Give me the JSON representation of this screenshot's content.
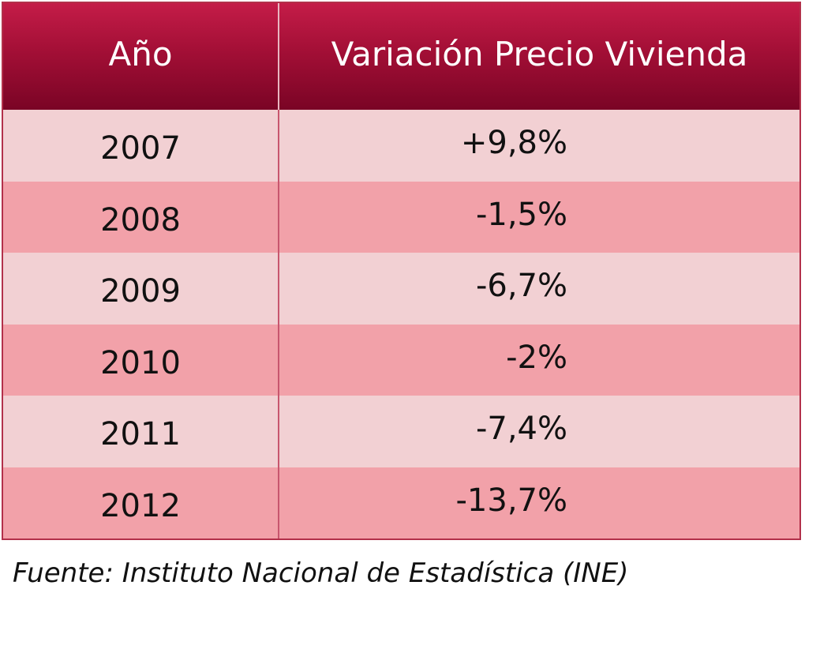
{
  "chart_data": {
    "type": "table",
    "columns": [
      "Año",
      "Variación Precio Vivienda"
    ],
    "rows": [
      {
        "year": "2007",
        "variation": "+9,8%"
      },
      {
        "year": "2008",
        "variation": "-1,5%"
      },
      {
        "year": "2009",
        "variation": "-6,7%"
      },
      {
        "year": "2010",
        "variation": "-2%"
      },
      {
        "year": "2011",
        "variation": "-7,4%"
      },
      {
        "year": "2012",
        "variation": "-13,7%"
      }
    ],
    "values": [
      9.8,
      -1.5,
      -6.7,
      -2,
      -7.4,
      -13.7
    ],
    "source": "Fuente: Instituto Nacional de Estadística (INE)"
  },
  "colors": {
    "header_top": "#c41c48",
    "header_bottom": "#7a0425",
    "row_light": "#f2d0d3",
    "row_dark": "#f2a1a9",
    "border": "#b2304a"
  }
}
